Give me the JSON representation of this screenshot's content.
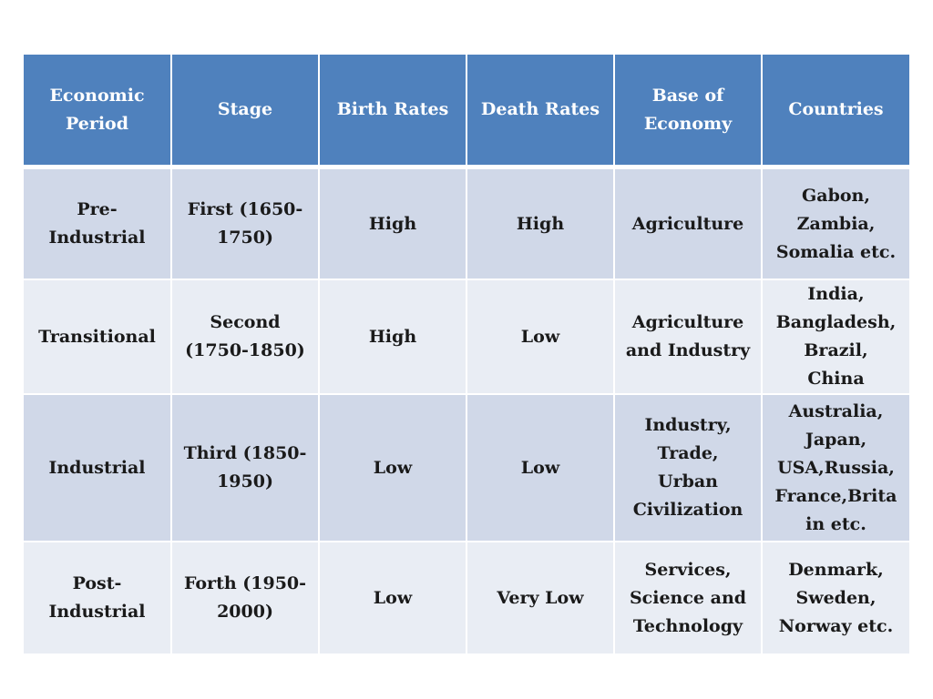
{
  "table": {
    "headers": [
      [
        "Economic",
        "Period"
      ],
      [
        "Stage"
      ],
      [
        "Birth Rates"
      ],
      [
        "Death Rates"
      ],
      [
        "Base of",
        "Economy"
      ],
      [
        "Countries"
      ]
    ],
    "rows": [
      {
        "period": [
          "Pre-",
          "Industrial"
        ],
        "stage": [
          "First (1650-",
          "1750)"
        ],
        "birth_rate": [
          "High"
        ],
        "death_rate": [
          "High"
        ],
        "economy": [
          "Agriculture"
        ],
        "countries": [
          "Gabon,",
          "Zambia,",
          "Somalia etc."
        ]
      },
      {
        "period": [
          "Transitional"
        ],
        "stage": [
          "Second",
          "(1750-1850)"
        ],
        "birth_rate": [
          "High"
        ],
        "death_rate": [
          "Low"
        ],
        "economy": [
          "Agriculture",
          "and Industry"
        ],
        "countries": [
          "India,",
          "Bangladesh,",
          "Brazil,",
          "China"
        ]
      },
      {
        "period": [
          "Industrial"
        ],
        "stage": [
          "Third (1850-",
          "1950)"
        ],
        "birth_rate": [
          "Low"
        ],
        "death_rate": [
          "Low"
        ],
        "economy": [
          "Industry,",
          "Trade,",
          "Urban",
          "Civilization"
        ],
        "countries": [
          "Australia,",
          "Japan,",
          "USA,Russia,",
          "France,Brita",
          "in etc."
        ]
      },
      {
        "period": [
          "Post-",
          "Industrial"
        ],
        "stage": [
          "Forth (1950-",
          "2000)"
        ],
        "birth_rate": [
          "Low"
        ],
        "death_rate": [
          "Very Low"
        ],
        "economy": [
          "Services,",
          "Science and",
          "Technology"
        ],
        "countries": [
          "Denmark,",
          "Sweden,",
          "Norway etc."
        ]
      }
    ]
  },
  "colors": {
    "header_bg": "#4f81bd",
    "row_odd_bg": "#d0d8e8",
    "row_even_bg": "#e9edf4"
  }
}
